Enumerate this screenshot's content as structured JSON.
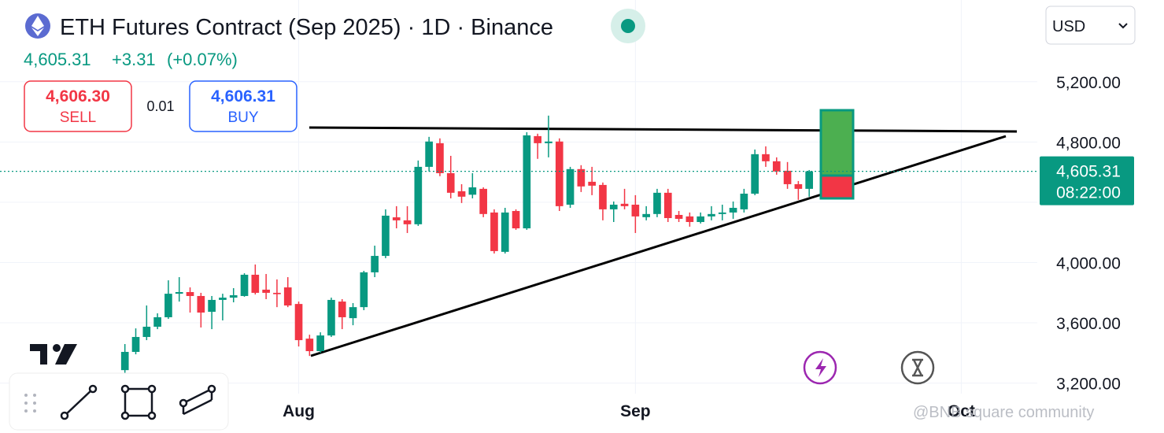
{
  "header": {
    "title": "ETH Futures Contract (Sep 2025) · 1D · Binance",
    "price": "4,605.31",
    "change": "+3.31",
    "change_pct": "(+0.07%)",
    "currency": "USD"
  },
  "order": {
    "sell_price": "4,606.30",
    "sell_label": "SELL",
    "spread": "0.01",
    "buy_price": "4,606.31",
    "buy_label": "BUY"
  },
  "price_label": {
    "value": 4605.31,
    "label": "4,605.31",
    "countdown": "08:22:00"
  },
  "watermark": "@BNB square community",
  "chart_data": {
    "type": "candlestick",
    "up_color": "#089981",
    "down_color": "#f23645",
    "open": [
      3286,
      3407,
      3506,
      3574,
      3637,
      3793,
      3804,
      3778,
      3673,
      3752,
      3767,
      3778,
      3919,
      3820,
      3799,
      3835,
      3725,
      3495,
      3412,
      3516,
      3741,
      3631,
      3704,
      3935,
      4044,
      4300,
      4280,
      4254,
      4635,
      4792,
      4593,
      4473,
      4450,
      4489,
      4332,
      4071,
      4342,
      4227,
      4839,
      4792,
      4803,
      4384,
      4620,
      4536,
      4515,
      4353,
      4390,
      4384,
      4301,
      4322,
      4463,
      4316,
      4306,
      4269,
      4306,
      4322,
      4332,
      4353,
      4457,
      4719,
      4672,
      4609,
      4520,
      4489
    ],
    "high": [
      3459,
      3563,
      3715,
      3663,
      3882,
      3903,
      3835,
      3799,
      3778,
      3793,
      3830,
      3929,
      3987,
      3924,
      3888,
      3903,
      3741,
      3521,
      3537,
      3767,
      3757,
      3731,
      3945,
      4112,
      4353,
      4374,
      4374,
      4677,
      4834,
      4824,
      4708,
      4520,
      4593,
      4499,
      4353,
      4363,
      4353,
      4865,
      4855,
      4975,
      4824,
      4635,
      4646,
      4635,
      4531,
      4405,
      4489,
      4447,
      4374,
      4489,
      4489,
      4342,
      4332,
      4332,
      4374,
      4384,
      4405,
      4489,
      4750,
      4771,
      4698,
      4667,
      4541,
      4614
    ],
    "low": [
      3260,
      3391,
      3485,
      3558,
      3626,
      3741,
      3668,
      3569,
      3558,
      3616,
      3736,
      3773,
      3788,
      3757,
      3704,
      3704,
      3443,
      3380,
      3401,
      3506,
      3558,
      3584,
      3684,
      3903,
      4029,
      4227,
      4196,
      4243,
      4604,
      4573,
      4426,
      4395,
      4426,
      4301,
      4060,
      4060,
      4217,
      4217,
      4688,
      4698,
      4342,
      4363,
      4468,
      4447,
      4280,
      4269,
      4353,
      4196,
      4280,
      4301,
      4269,
      4269,
      4238,
      4259,
      4280,
      4280,
      4290,
      4332,
      4447,
      4635,
      4583,
      4489,
      4416,
      4437
    ],
    "close": [
      3407,
      3506,
      3574,
      3637,
      3793,
      3804,
      3778,
      3668,
      3752,
      3767,
      3783,
      3919,
      3799,
      3799,
      3790,
      3715,
      3485,
      3412,
      3516,
      3752,
      3637,
      3704,
      3935,
      4044,
      4311,
      4280,
      4254,
      4635,
      4803,
      4593,
      4463,
      4437,
      4499,
      4322,
      4076,
      4332,
      4227,
      4844,
      4792,
      4803,
      4374,
      4620,
      4505,
      4510,
      4353,
      4384,
      4374,
      4306,
      4322,
      4463,
      4295,
      4290,
      4269,
      4306,
      4322,
      4332,
      4363,
      4457,
      4719,
      4672,
      4604,
      4520,
      4489,
      4605.31
    ],
    "xlim": [
      -11.5,
      84
    ],
    "xticks": [
      {
        "value": 16,
        "label": "Aug"
      },
      {
        "value": 47,
        "label": "Sep"
      },
      {
        "value": 77,
        "label": "Oct"
      }
    ],
    "ylim": [
      3130,
      5690
    ],
    "yticks": [
      {
        "value": 3200,
        "label": "3,200.00"
      },
      {
        "value": 3600,
        "label": "3,600.00"
      },
      {
        "value": 4000,
        "label": "4,000.00"
      },
      {
        "value": 4400,
        "label": ""
      },
      {
        "value": 4800,
        "label": "4,800.00"
      },
      {
        "value": 5200,
        "label": "5,200.00"
      }
    ],
    "grid": true
  }
}
